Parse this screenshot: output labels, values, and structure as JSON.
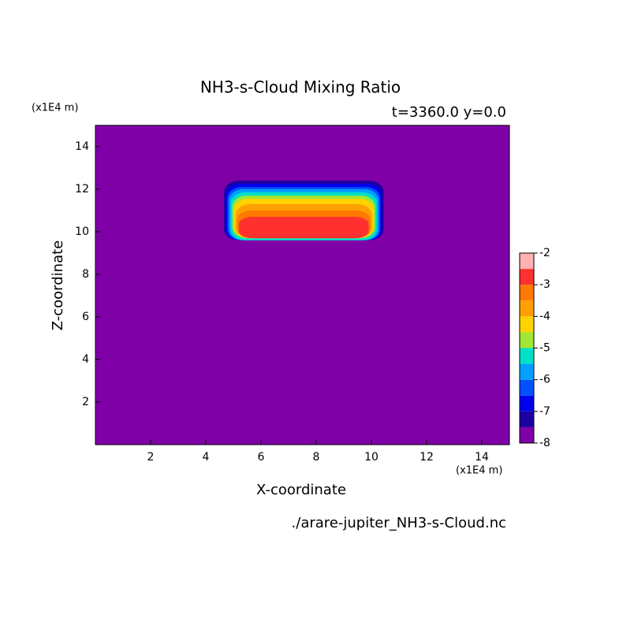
{
  "chart_data": {
    "type": "contour",
    "title": "NH3-s-Cloud Mixing Ratio",
    "subtitle": "t=3360.0 y=0.0",
    "x_label": "X-coordinate",
    "y_label": "Z-coordinate",
    "x_unit": "(x1E4 m)",
    "y_unit": "(x1E4 m)",
    "footer": "./arare-jupiter_NH3-s-Cloud.nc",
    "xlim": [
      0,
      15
    ],
    "ylim": [
      0,
      15
    ],
    "xticks": [
      2,
      4,
      6,
      8,
      10,
      12,
      14
    ],
    "yticks": [
      2,
      4,
      6,
      8,
      10,
      12,
      14
    ],
    "levels": [
      -8,
      -7.5,
      -7,
      -6.5,
      -6,
      -5.5,
      -5,
      -4.5,
      -4,
      -3.5,
      -3,
      -2.5,
      -2
    ],
    "colors": [
      "#8000a8",
      "#1e00a0",
      "#0000f0",
      "#0050ff",
      "#00a0ff",
      "#00e0c8",
      "#a0e632",
      "#ffd200",
      "#ffa000",
      "#ff7800",
      "#ff3030",
      "#ffb0b0"
    ],
    "colorbar_ticks": [
      -8,
      -7,
      -6,
      -5,
      -4,
      -3,
      -2
    ]
  }
}
